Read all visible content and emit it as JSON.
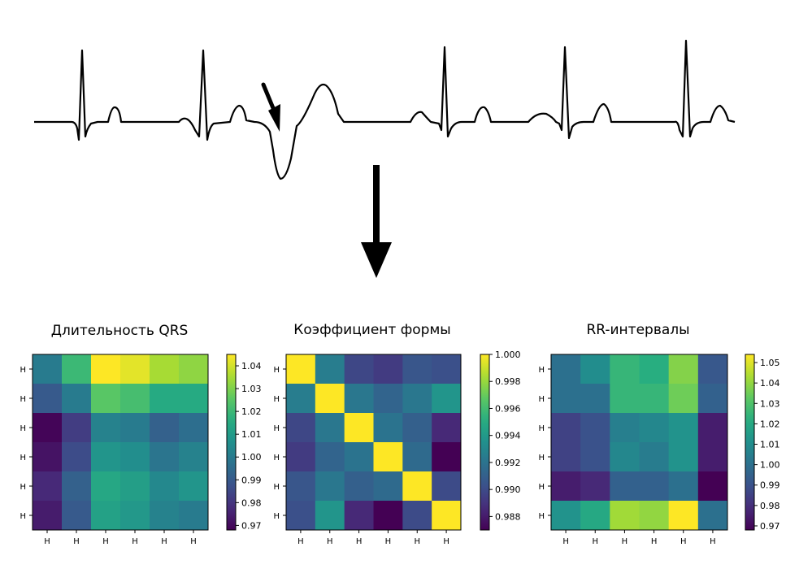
{
  "chart_data": [
    {
      "type": "heatmap",
      "title": "Длительность QRS",
      "xticks": [
        "Н",
        "Н",
        "Н",
        "Н",
        "Н",
        "Н"
      ],
      "yticks": [
        "Н",
        "Н",
        "Н",
        "Н",
        "Н",
        "Н"
      ],
      "colormap": "viridis",
      "vmin": 0.968,
      "vmax": 1.045,
      "colorbar_ticks": [
        "1.04",
        "1.03",
        "1.02",
        "1.01",
        "1.00",
        "0.99",
        "0.98",
        "0.97"
      ],
      "colorbar_values": [
        1.04,
        1.03,
        1.02,
        1.01,
        1.0,
        0.99,
        0.98,
        0.97
      ],
      "values": [
        [
          1.0,
          1.02,
          1.045,
          1.042,
          1.035,
          1.032
        ],
        [
          0.99,
          1.0,
          1.025,
          1.022,
          1.015,
          1.015
        ],
        [
          0.969,
          0.982,
          1.002,
          1.0,
          0.992,
          0.996
        ],
        [
          0.972,
          0.986,
          1.008,
          1.006,
          0.998,
          1.002
        ],
        [
          0.977,
          0.992,
          1.014,
          1.011,
          1.004,
          1.008
        ],
        [
          0.974,
          0.99,
          1.012,
          1.009,
          1.002,
          1.0
        ]
      ]
    },
    {
      "type": "heatmap",
      "title": "Коэффициент формы",
      "xticks": [
        "Н",
        "Н",
        "Н",
        "Н",
        "Н",
        "Н"
      ],
      "yticks": [
        "Н",
        "Н",
        "Н",
        "Н",
        "Н",
        "Н"
      ],
      "colormap": "viridis",
      "vmin": 0.987,
      "vmax": 1.0,
      "colorbar_ticks": [
        "1.000",
        "0.998",
        "0.996",
        "0.994",
        "0.992",
        "0.990",
        "0.988"
      ],
      "colorbar_values": [
        1.0,
        0.998,
        0.996,
        0.994,
        0.992,
        0.99,
        0.988
      ],
      "values": [
        [
          1.0,
          0.9925,
          0.9898,
          0.9893,
          0.9905,
          0.9902
        ],
        [
          0.9925,
          1.0,
          0.9922,
          0.9912,
          0.9922,
          0.9938
        ],
        [
          0.9898,
          0.9922,
          1.0,
          0.992,
          0.991,
          0.9885
        ],
        [
          0.9893,
          0.9912,
          0.992,
          1.0,
          0.9915,
          0.987
        ],
        [
          0.9905,
          0.9922,
          0.991,
          0.9915,
          1.0,
          0.99
        ],
        [
          0.9902,
          0.9938,
          0.9885,
          0.987,
          0.99,
          1.0
        ]
      ]
    },
    {
      "type": "heatmap",
      "title": "RR-интервалы",
      "xticks": [
        "Н",
        "Н",
        "Н",
        "Н",
        "Н",
        "Н"
      ],
      "yticks": [
        "Н",
        "Н",
        "Н",
        "Н",
        "Н",
        "Н"
      ],
      "colormap": "viridis",
      "vmin": 0.968,
      "vmax": 1.054,
      "colorbar_ticks": [
        "1.05",
        "1.04",
        "1.03",
        "1.02",
        "1.01",
        "1.00",
        "0.99",
        "0.98",
        "0.97"
      ],
      "colorbar_values": [
        1.05,
        1.04,
        1.03,
        1.02,
        1.01,
        1.0,
        0.99,
        0.98,
        0.97
      ],
      "values": [
        [
          1.0,
          1.01,
          1.025,
          1.022,
          1.038,
          0.992
        ],
        [
          1.0,
          1.0,
          1.025,
          1.025,
          1.035,
          0.995
        ],
        [
          0.985,
          0.99,
          1.005,
          1.008,
          1.012,
          0.975
        ],
        [
          0.985,
          0.99,
          1.008,
          1.004,
          1.012,
          0.975
        ],
        [
          0.975,
          0.978,
          0.995,
          0.995,
          1.0,
          0.968
        ],
        [
          1.012,
          1.02,
          1.042,
          1.04,
          1.054,
          1.0
        ]
      ]
    }
  ],
  "ecg_signal": {
    "icon": "ecg-waveform",
    "annotation_icon": "arrow-pointing-at-abnormal-beat",
    "flow_icon": "down-arrow"
  }
}
